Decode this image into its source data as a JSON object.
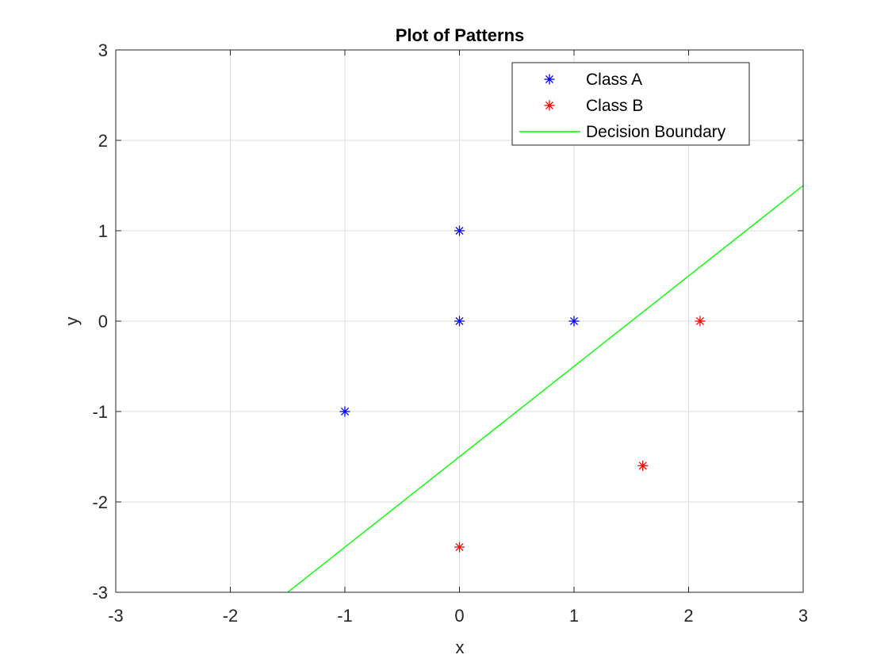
{
  "chart_data": {
    "type": "scatter",
    "title": "Plot of Patterns",
    "xlabel": "x",
    "ylabel": "y",
    "xlim": [
      -3,
      3
    ],
    "ylim": [
      -3,
      3
    ],
    "xticks": [
      -3,
      -2,
      -1,
      0,
      1,
      2,
      3
    ],
    "yticks": [
      -3,
      -2,
      -1,
      0,
      1,
      2,
      3
    ],
    "grid": true,
    "legend_position": "top-right",
    "series": [
      {
        "name": "Class A",
        "kind": "scatter",
        "marker": "asterisk",
        "color": "#0000ff",
        "points": [
          [
            0,
            1
          ],
          [
            0,
            0
          ],
          [
            1,
            0
          ],
          [
            -1,
            -1
          ]
        ]
      },
      {
        "name": "Class B",
        "kind": "scatter",
        "marker": "asterisk",
        "color": "#ff0000",
        "points": [
          [
            2.1,
            0
          ],
          [
            1.6,
            -1.6
          ],
          [
            0,
            -2.5
          ]
        ]
      },
      {
        "name": "Decision Boundary",
        "kind": "line",
        "color": "#00ff00",
        "points": [
          [
            -1.5,
            -3
          ],
          [
            3,
            1.5
          ]
        ]
      }
    ]
  }
}
